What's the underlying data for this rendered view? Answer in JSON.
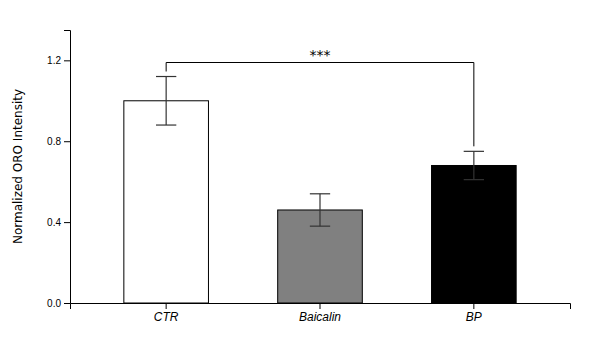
{
  "chart_data": {
    "type": "bar",
    "categories": [
      "CTR",
      "Baicalin",
      "BP"
    ],
    "values": [
      1.0,
      0.46,
      0.68
    ],
    "errors": [
      0.12,
      0.08,
      0.07
    ],
    "colors": [
      "white",
      "#808080",
      "#000000"
    ],
    "ylabel": "Normalized ORO Intensity",
    "ylim": [
      0,
      1.35
    ],
    "yticks": [
      {
        "value": 0,
        "label": "0.0"
      },
      0.4,
      0.8,
      1.2
    ],
    "annotations": [
      {
        "text": "***",
        "between": [
          "CTR",
          "BP"
        ]
      }
    ]
  }
}
